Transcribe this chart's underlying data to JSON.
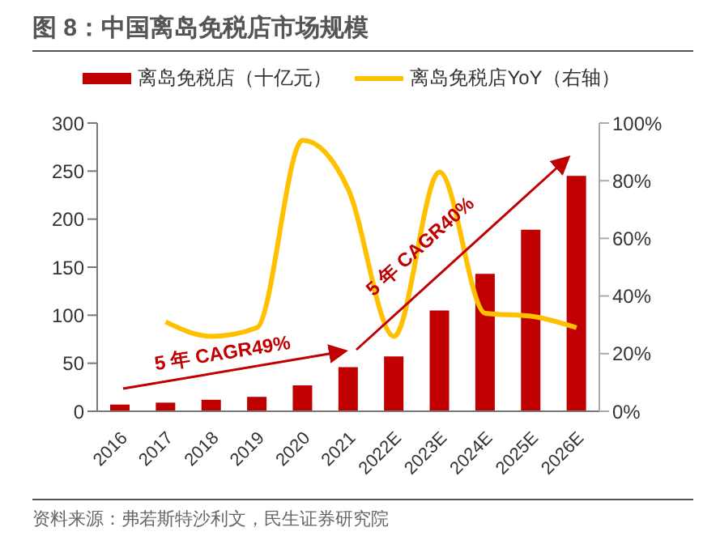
{
  "chart_data": {
    "type": "bar",
    "title": "图 8：中国离岛免税店市场规模",
    "categories": [
      "2016",
      "2017",
      "2018",
      "2019",
      "2020",
      "2021",
      "2022E",
      "2023E",
      "2024E",
      "2025E",
      "2026E"
    ],
    "series": [
      {
        "name": "离岛免税店（十亿元）",
        "color": "#c00000",
        "values": [
          7,
          9,
          12,
          15,
          27,
          46,
          57,
          105,
          143,
          189,
          245
        ]
      },
      {
        "name": "离岛免税店YoY（右轴）",
        "type": "line",
        "axis": "y2",
        "color": "#ffc000",
        "values": [
          null,
          31,
          26,
          29,
          94,
          77,
          26,
          83,
          34,
          33,
          29
        ]
      }
    ],
    "ylim": [
      0,
      300
    ],
    "yticks": [
      0,
      50,
      100,
      150,
      200,
      250,
      300
    ],
    "y2lim": [
      0,
      100
    ],
    "y2ticks": [
      {
        "value": 0,
        "label": "0%"
      },
      {
        "value": 20,
        "label": "20%"
      },
      {
        "value": 40,
        "label": "40%"
      },
      {
        "value": 60,
        "label": "60%"
      },
      {
        "value": 80,
        "label": "80%"
      },
      {
        "value": 100,
        "label": "100%"
      }
    ],
    "legend": "top",
    "grid": false,
    "marker": "none",
    "line_style": "solid",
    "annotations": [
      "5 年 CAGR49%",
      "5 年 CAGR40%",
      "资料来源：弗若斯特沙利文，民生证券研究院"
    ]
  }
}
